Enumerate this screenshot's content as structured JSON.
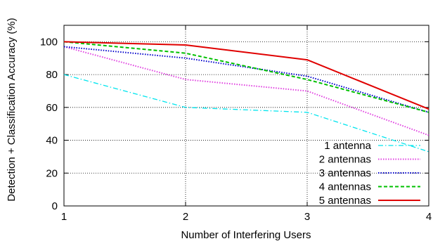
{
  "chart_data": {
    "type": "line",
    "title": "",
    "xlabel": "Number of Interfering Users",
    "ylabel": "Detection + Classification Accuracy (%)",
    "xlim": [
      1,
      4
    ],
    "ylim": [
      0,
      110
    ],
    "xticks": [
      "1",
      "2",
      "3",
      "4"
    ],
    "yticks": [
      "0",
      "20",
      "40",
      "60",
      "80",
      "100"
    ],
    "grid": "dotted, at x ticks 2 and 3 and y ticks 20-100",
    "legend_position": "bottom-right",
    "x": [
      1,
      2,
      3,
      4
    ],
    "series": [
      {
        "name": "1 antenna",
        "values": [
          80,
          60,
          57,
          33
        ],
        "color": "#00e5ee",
        "dash": "dash-dot"
      },
      {
        "name": "2 antennas",
        "values": [
          97,
          77,
          70,
          43
        ],
        "color": "#e040e0",
        "dash": "dotted"
      },
      {
        "name": "3 antennas",
        "values": [
          97,
          90,
          79,
          57
        ],
        "color": "#0000cc",
        "dash": "dotted"
      },
      {
        "name": "4 antennas",
        "values": [
          100,
          93,
          77,
          57
        ],
        "color": "#00c000",
        "dash": "dashed"
      },
      {
        "name": "5 antennas",
        "values": [
          100,
          98,
          89,
          59
        ],
        "color": "#e00000",
        "dash": "solid"
      }
    ]
  }
}
